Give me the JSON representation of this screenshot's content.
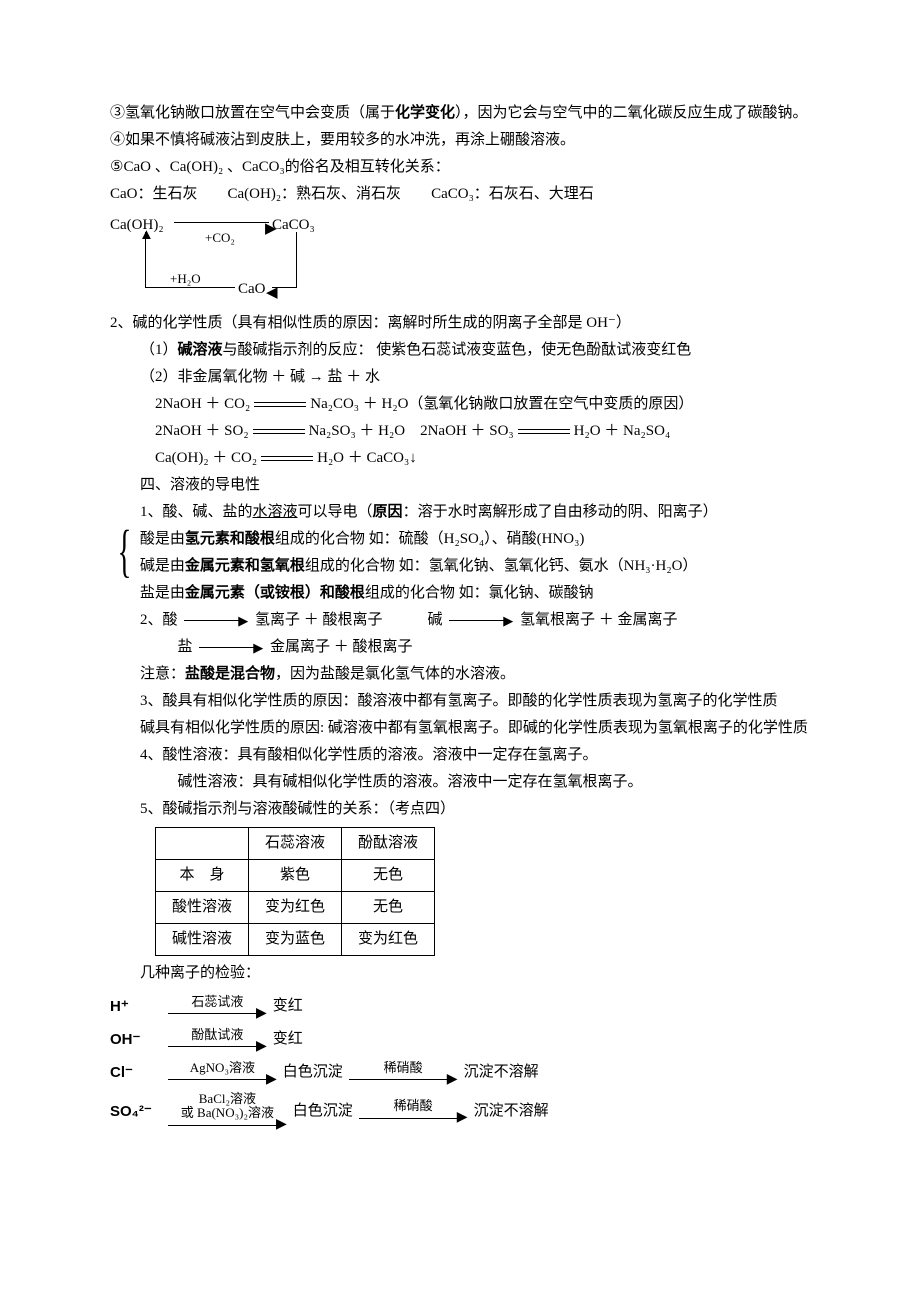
{
  "p1": "③氢氧化钠敞口放置在空气中会变质（属于",
  "p1b": "化学变化",
  "p1c": "），因为它会与空气中的二氧化碳反应生成了碳酸钠。",
  "p2": "④如果不慎将碱液沾到皮肤上，要用较多的水冲洗，再涂上硼酸溶液。",
  "p3": "⑤CaO 、Ca(OH)₂ 、CaCO₃的俗名及相互转化关系：",
  "p4a": "CaO：生石灰",
  "p4b": "Ca(OH)₂：熟石灰、消石灰",
  "p4c": "CaCO₃：石灰石、大理石",
  "d1": {
    "caoh2": "Ca(OH)₂",
    "caco3": "CaCO₃",
    "co2": "+CO₂",
    "h2o": "+H₂O",
    "cao": "CaO"
  },
  "p5a": "2、碱的化学性质（具有相似性质的原因：离解时所生成的阴离子全部是 OH⁻）",
  "p5b1": "（1）",
  "p5b2": "碱溶液",
  "p5b3": "与酸碱指示剂的反应：   使紫色石蕊试液变蓝色，使无色酚酞试液变红色",
  "p5c": "（2）非金属氧化物 ＋ 碱 → 盐 ＋ 水",
  "eq1a": "2NaOH ＋ CO₂",
  "eq1b": "Na₂CO₃ ＋ H₂O（氢氧化钠敞口放置在空气中变质的原因）",
  "eq2a": "2NaOH ＋ SO₂",
  "eq2b": "Na₂SO₃ ＋ H₂O",
  "eq2c": "2NaOH ＋ SO₃",
  "eq2d": "H₂O ＋ Na₂SO₄",
  "eq3a": "Ca(OH)₂ ＋ CO₂",
  "eq3b": "H₂O ＋ CaCO₃↓",
  "p6": "四、溶液的导电性",
  "p7a": "1、酸、碱、盐的",
  "p7b": "水溶液",
  "p7c": "可以导电（",
  "p7d": "原因",
  "p7e": "：溶于水时离解形成了自由移动的阴、阳离子）",
  "br1a": "酸是由",
  "br1b": "氢元素和酸根",
  "br1c": "组成的化合物   如：硫酸（H₂SO₄）、硝酸(HNO₃)",
  "br2a": "碱是由",
  "br2b": "金属元素和氢氧根",
  "br2c": "组成的化合物  如：氢氧化钠、氢氧化钙、氨水（NH₃·H₂O）",
  "br3a": "盐是由",
  "br3b": "金属元素（或铵根）和酸根",
  "br3c": "组成的化合物  如：氯化钠、碳酸钠",
  "p8a": "2、酸",
  "p8b": "氢离子 ＋ 酸根离子",
  "p8c": "碱",
  "p8d": "氢氧根离子 ＋ 金属离子",
  "p8e": "盐",
  "p8f": "金属离子 ＋ 酸根离子",
  "p9a": "注意：",
  "p9b": "盐酸是混合物",
  "p9c": "，因为盐酸是氯化氢气体的水溶液。",
  "p10": "3、酸具有相似化学性质的原因：酸溶液中都有氢离子。即酸的化学性质表现为氢离子的化学性质",
  "p11": "碱具有相似化学性质的原因: 碱溶液中都有氢氧根离子。即碱的化学性质表现为氢氧根离子的化学性质",
  "p12": "4、酸性溶液：具有酸相似化学性质的溶液。溶液中一定存在氢离子。",
  "p13": "碱性溶液：具有碱相似化学性质的溶液。溶液中一定存在氢氧根离子。",
  "p14": "5、酸碱指示剂与溶液酸碱性的关系：（考点四）",
  "table": {
    "colors": {
      "border": "#000000",
      "bg": "#ffffff"
    },
    "columns": [
      "",
      "石蕊溶液",
      "酚酞溶液"
    ],
    "rows": [
      [
        "本　身",
        "紫色",
        "无色"
      ],
      [
        "酸性溶液",
        "变为红色",
        "无色"
      ],
      [
        "碱性溶液",
        "变为蓝色",
        "变为红色"
      ]
    ]
  },
  "p15": "几种离子的检验：",
  "ions": [
    {
      "label": "H⁺",
      "top1": "石蕊试液",
      "w1": 90,
      "res1": "变红"
    },
    {
      "label": "OH⁻",
      "top1": "酚酞试液",
      "w1": 90,
      "res1": "变红"
    },
    {
      "label": "Cl⁻",
      "top1": "AgNO₃溶液",
      "w1": 100,
      "res1": "白色沉淀",
      "top2": "稀硝酸",
      "w2": 100,
      "res2": "沉淀不溶解"
    },
    {
      "label": "SO₄²⁻",
      "top1": "BaCl₂溶液",
      "top1b": "或 Ba(NO₃)₂溶液",
      "w1": 110,
      "res1": "白色沉淀",
      "top2": "稀硝酸",
      "w2": 100,
      "res2": "沉淀不溶解"
    }
  ]
}
